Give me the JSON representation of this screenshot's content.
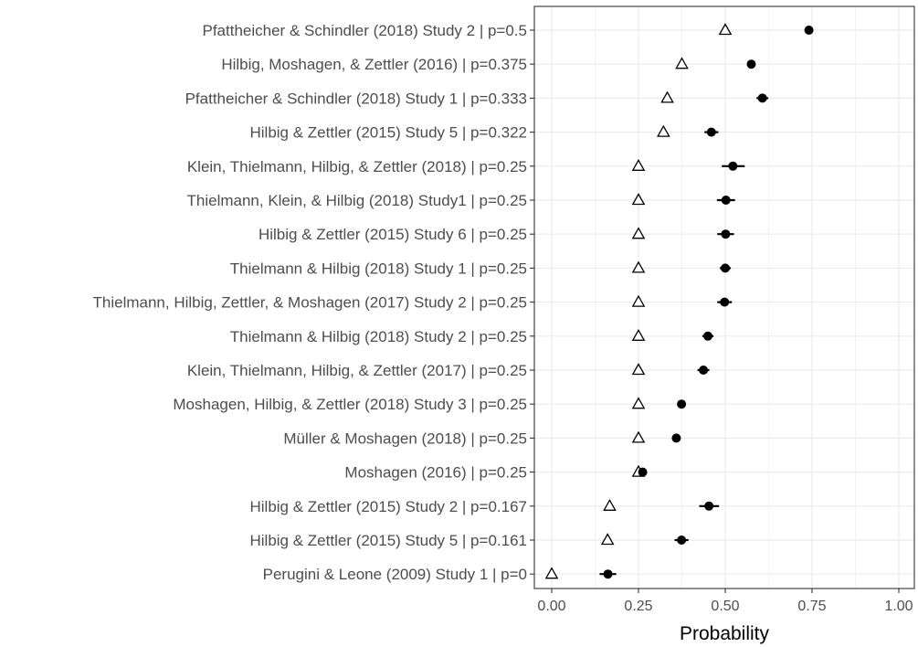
{
  "chart_data": {
    "type": "scatter",
    "title": "",
    "xlabel": "Probability",
    "ylabel": "",
    "xlim": [
      -0.05,
      1.02
    ],
    "x_ticks": [
      0,
      0.25,
      0.5,
      0.75,
      1.0
    ],
    "x_tick_labels": [
      "0.00",
      "0.25",
      "0.50",
      "0.75",
      "1.00"
    ],
    "grid": true,
    "legend": "none",
    "colors": {
      "estimate": "#000000",
      "baseline_stroke": "#000000",
      "baseline_fill": "#ffffff",
      "grid": "#ebebeb",
      "panel_border": "#333333"
    },
    "categories": [
      "Pfattheicher & Schindler (2018) Study 2 | p=0.5",
      "Hilbig, Moshagen, & Zettler (2016) | p=0.375",
      "Pfattheicher & Schindler (2018) Study 1 | p=0.333",
      "Hilbig & Zettler (2015) Study 5 | p=0.322",
      "Klein, Thielmann, Hilbig, & Zettler (2018) | p=0.25",
      "Thielmann, Klein, & Hilbig (2018) Study1 | p=0.25",
      "Hilbig & Zettler (2015) Study 6 | p=0.25",
      "Thielmann & Hilbig (2018) Study 1 | p=0.25",
      "Thielmann, Hilbig, Zettler, & Moshagen (2017) Study 2 | p=0.25",
      "Thielmann & Hilbig (2018) Study 2 | p=0.25",
      "Klein, Thielmann, Hilbig, & Zettler (2017) | p=0.25",
      "Moshagen, Hilbig, & Zettler (2018) Study 3 | p=0.25",
      "Müller & Moshagen (2018) | p=0.25",
      "Moshagen (2016) | p=0.25",
      "Hilbig & Zettler (2015) Study 2 | p=0.167",
      "Hilbig & Zettler (2015) Study 5 | p=0.161",
      "Perugini & Leone (2009) Study 1 | p=0"
    ],
    "series": [
      {
        "marker": "filled-circle",
        "values": [
          0.741,
          0.575,
          0.607,
          0.46,
          0.522,
          0.502,
          0.501,
          0.5,
          0.498,
          0.45,
          0.437,
          0.374,
          0.359,
          0.262,
          0.453,
          0.374,
          0.162
        ],
        "ci_low": [
          0.741,
          0.575,
          0.59,
          0.44,
          0.49,
          0.476,
          0.477,
          0.484,
          0.477,
          0.434,
          0.42,
          0.374,
          0.359,
          0.262,
          0.425,
          0.354,
          0.138
        ],
        "ci_high": [
          0.741,
          0.575,
          0.624,
          0.48,
          0.556,
          0.528,
          0.525,
          0.516,
          0.519,
          0.466,
          0.454,
          0.374,
          0.359,
          0.262,
          0.482,
          0.394,
          0.186
        ]
      },
      {
        "marker": "open-triangle",
        "values": [
          0.5,
          0.375,
          0.333,
          0.322,
          0.25,
          0.25,
          0.25,
          0.25,
          0.25,
          0.25,
          0.25,
          0.25,
          0.25,
          0.25,
          0.167,
          0.161,
          0.0
        ]
      }
    ]
  }
}
